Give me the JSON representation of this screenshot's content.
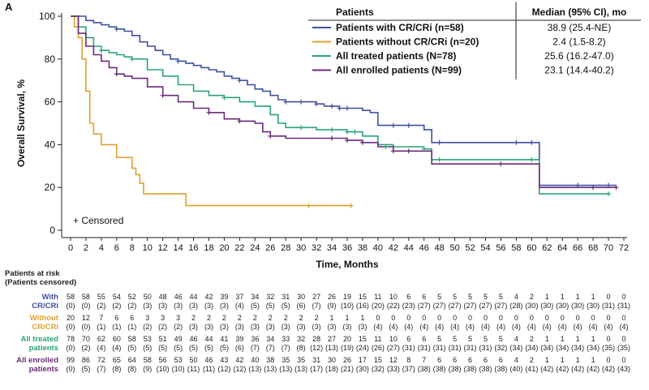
{
  "panel_label": "A",
  "censored_note": "+ Censored",
  "legend": {
    "header_patients": "Patients",
    "header_median": "Median (95% CI), mo"
  },
  "risk_table": {
    "title_line1": "Patients at risk",
    "title_line2": "(Patients censored)"
  },
  "chart_data": {
    "type": "line",
    "subtype": "kaplan-meier",
    "xlabel": "Time, Months",
    "ylabel": "Overall Survival, %",
    "xlim": [
      0,
      72
    ],
    "ylim": [
      0,
      100
    ],
    "xticks": [
      0,
      2,
      4,
      6,
      8,
      10,
      12,
      14,
      16,
      18,
      20,
      22,
      24,
      26,
      28,
      30,
      32,
      34,
      36,
      38,
      40,
      42,
      44,
      46,
      48,
      50,
      52,
      54,
      56,
      58,
      60,
      62,
      64,
      66,
      68,
      70,
      72
    ],
    "yticks": [
      0,
      20,
      40,
      60,
      80,
      100
    ],
    "grid": false,
    "legend_position": "top-right",
    "series": [
      {
        "name": "Patients with CR/CRi (n=58)",
        "median": "38.9 (25.4-NE)",
        "color": "#3f51a0",
        "x": [
          0,
          1,
          2,
          3,
          4,
          5,
          6,
          7,
          8,
          9,
          10,
          11,
          12,
          13,
          14,
          15,
          16,
          17,
          18,
          19,
          20,
          21,
          22,
          23,
          24,
          25,
          26,
          27,
          28,
          29,
          30,
          31,
          32,
          33,
          34,
          35,
          36,
          37,
          38,
          39,
          40,
          42,
          44,
          46,
          47,
          48,
          50,
          55,
          60,
          61,
          65,
          70,
          71
        ],
        "y": [
          100,
          100,
          98,
          97,
          96,
          95,
          94,
          93,
          91,
          88,
          86,
          84,
          82,
          80,
          79,
          78,
          77,
          76,
          75,
          74,
          72,
          71,
          70,
          68,
          66,
          65,
          63,
          61,
          60,
          60,
          60,
          60,
          59,
          58,
          58,
          57,
          57,
          57,
          56,
          55,
          49,
          49,
          49,
          47,
          41,
          41,
          41,
          41,
          41,
          21,
          21,
          21,
          21
        ],
        "censor_x": [
          6,
          14,
          22,
          28,
          30,
          32,
          34,
          35,
          36,
          42,
          44,
          48,
          58,
          60,
          66,
          70
        ],
        "censor_y": [
          94,
          79,
          70,
          60,
          60,
          59,
          58,
          57,
          57,
          49,
          49,
          41,
          41,
          41,
          21,
          21
        ]
      },
      {
        "name": "Patients without CR/CRi (n=20)",
        "median": "2.4 (1.5-8.2)",
        "color": "#e0a030",
        "x": [
          0,
          0.5,
          1,
          1.5,
          2,
          2.5,
          3,
          4,
          6,
          8,
          8.5,
          9,
          9.5,
          10,
          14,
          15,
          20,
          30,
          36.5
        ],
        "y": [
          100,
          95,
          90,
          80,
          65,
          50,
          45,
          40,
          34,
          29,
          26,
          22,
          17,
          17,
          17,
          11.5,
          11.5,
          11.5,
          11.5
        ],
        "censor_x": [
          31,
          36.5
        ],
        "censor_y": [
          11.5,
          11.5
        ]
      },
      {
        "name": "All treated patients (N=78)",
        "median": "25.6 (16.2-47.0)",
        "color": "#2aa37a",
        "x": [
          0,
          1,
          2,
          3,
          4,
          5,
          6,
          7,
          8,
          10,
          12,
          14,
          16,
          18,
          20,
          22,
          24,
          26,
          27,
          28,
          30,
          32,
          34,
          36,
          38,
          40,
          42,
          44,
          46,
          47,
          50,
          55,
          60,
          61,
          70
        ],
        "y": [
          100,
          95,
          90,
          86,
          84,
          83,
          82,
          81,
          80,
          75,
          72,
          68,
          65,
          63,
          62,
          60,
          58,
          54,
          50,
          48,
          48,
          47,
          47,
          46,
          44,
          40,
          39,
          39,
          38,
          33,
          33,
          33,
          33,
          17,
          17
        ],
        "censor_x": [
          4,
          8,
          20,
          30,
          34,
          36,
          37,
          41,
          46,
          48,
          60,
          70
        ],
        "censor_y": [
          84,
          80,
          62,
          48,
          47,
          46,
          46,
          39,
          38,
          33,
          33,
          17
        ]
      },
      {
        "name": "All enrolled patients (N=99)",
        "median": "23.1 (14.4-40.2)",
        "color": "#6a2a7a",
        "x": [
          0,
          1,
          2,
          3,
          4,
          5,
          6,
          7,
          8,
          10,
          12,
          14,
          16,
          18,
          20,
          22,
          24,
          25,
          26,
          28,
          30,
          32,
          34,
          36,
          38,
          40,
          42,
          44,
          46,
          47,
          50,
          55,
          60,
          61,
          71
        ],
        "y": [
          100,
          92,
          86,
          82,
          79,
          76,
          73,
          72,
          71,
          67,
          63,
          60,
          57,
          55,
          52,
          51,
          50,
          46,
          44,
          43,
          43,
          43,
          43,
          42,
          41,
          39,
          37,
          37,
          37,
          31,
          31,
          31,
          31,
          20,
          20
        ],
        "censor_x": [
          6,
          12,
          18,
          22,
          26,
          34,
          36,
          38,
          42,
          44,
          56,
          68,
          71
        ],
        "censor_y": [
          73,
          63,
          55,
          51,
          44,
          43,
          42,
          41,
          37,
          37,
          31,
          20,
          20
        ]
      }
    ],
    "risk_table": {
      "time_points": [
        0,
        2,
        4,
        6,
        8,
        10,
        12,
        14,
        16,
        18,
        20,
        22,
        24,
        26,
        28,
        30,
        32,
        34,
        36,
        38,
        40,
        42,
        44,
        46,
        48,
        50,
        52,
        54,
        56,
        58,
        60,
        62,
        64,
        66,
        68,
        70,
        72
      ],
      "rows": [
        {
          "label_line1": "With",
          "label_line2": "CR/CRi",
          "color": "#3f51a0",
          "at_risk": [
            "58",
            "58",
            "55",
            "54",
            "52",
            "50",
            "48",
            "46",
            "44",
            "42",
            "39",
            "37",
            "34",
            "32",
            "31",
            "30",
            "27",
            "26",
            "19",
            "15",
            "11",
            "10",
            "6",
            "6",
            "5",
            "5",
            "5",
            "5",
            "5",
            "4",
            "2",
            "1",
            "1",
            "1",
            "1",
            "0",
            "0"
          ],
          "censored": [
            "(0)",
            "(0)",
            "(2)",
            "(2)",
            "(2)",
            "(3)",
            "(3)",
            "(3)",
            "(3)",
            "(3)",
            "(3)",
            "(4)",
            "(5)",
            "(5)",
            "(5)",
            "(6)",
            "(7)",
            "(9)",
            "(10)",
            "(16)",
            "(20)",
            "(22)",
            "(23)",
            "(27)",
            "(27)",
            "(27)",
            "(27)",
            "(27)",
            "(27)",
            "(28)",
            "(30)",
            "(30)",
            "(30)",
            "(30)",
            "(30)",
            "(31)",
            "(31)"
          ]
        },
        {
          "label_line1": "Without",
          "label_line2": "CR/CRi",
          "color": "#e0a030",
          "at_risk": [
            "20",
            "12",
            "7",
            "6",
            "6",
            "3",
            "3",
            "3",
            "2",
            "2",
            "2",
            "2",
            "2",
            "2",
            "2",
            "2",
            "2",
            "1",
            "1",
            "1",
            "0",
            "0",
            "0",
            "0",
            "0",
            "0",
            "0",
            "0",
            "0",
            "0",
            "0",
            "0",
            "0",
            "0",
            "0",
            "0",
            "0"
          ],
          "censored": [
            "(0)",
            "(0)",
            "(1)",
            "(1)",
            "(1)",
            "(2)",
            "(2)",
            "(2)",
            "(3)",
            "(3)",
            "(3)",
            "(3)",
            "(3)",
            "(3)",
            "(3)",
            "(3)",
            "(3)",
            "(3)",
            "(3)",
            "(3)",
            "(4)",
            "(4)",
            "(4)",
            "(4)",
            "(4)",
            "(4)",
            "(4)",
            "(4)",
            "(4)",
            "(4)",
            "(4)",
            "(4)",
            "(4)",
            "(4)",
            "(4)",
            "(4)",
            "(4)"
          ]
        },
        {
          "label_line1": "All treated",
          "label_line2": "patients",
          "color": "#2aa37a",
          "at_risk": [
            "78",
            "70",
            "62",
            "60",
            "58",
            "53",
            "51",
            "49",
            "46",
            "44",
            "41",
            "39",
            "36",
            "34",
            "33",
            "32",
            "28",
            "27",
            "20",
            "15",
            "11",
            "10",
            "6",
            "6",
            "5",
            "5",
            "5",
            "5",
            "5",
            "4",
            "2",
            "1",
            "1",
            "1",
            "1",
            "0",
            "0"
          ],
          "censored": [
            "(0)",
            "(2)",
            "(4)",
            "(4)",
            "(5)",
            "(5)",
            "(5)",
            "(5)",
            "(5)",
            "(5)",
            "(5)",
            "(6)",
            "(7)",
            "(7)",
            "(7)",
            "(8)",
            "(12)",
            "(13)",
            "(19)",
            "(24)",
            "(26)",
            "(27)",
            "(31)",
            "(31)",
            "(31)",
            "(31)",
            "(31)",
            "(31)",
            "(32)",
            "(34)",
            "(34)",
            "(34)",
            "(34)",
            "(34)",
            "(34)",
            "(35)",
            "(35)"
          ]
        },
        {
          "label_line1": "All enrolled",
          "label_line2": "patients",
          "color": "#6a2a7a",
          "at_risk": [
            "99",
            "86",
            "72",
            "65",
            "64",
            "58",
            "56",
            "53",
            "50",
            "46",
            "43",
            "42",
            "40",
            "38",
            "35",
            "35",
            "31",
            "30",
            "26",
            "17",
            "15",
            "12",
            "8",
            "7",
            "6",
            "6",
            "6",
            "6",
            "6",
            "4",
            "2",
            "1",
            "1",
            "1",
            "1",
            "0",
            "0"
          ],
          "censored": [
            "(0)",
            "(5)",
            "(7)",
            "(8)",
            "(8)",
            "(9)",
            "(10)",
            "(10)",
            "(11)",
            "(11)",
            "(12)",
            "(12)",
            "(13)",
            "(13)",
            "(13)",
            "(13)",
            "(17)",
            "(18)",
            "(21)",
            "(30)",
            "(32)",
            "(33)",
            "(37)",
            "(38)",
            "(38)",
            "(38)",
            "(38)",
            "(38)",
            "(38)",
            "(40)",
            "(41)",
            "(42)",
            "(42)",
            "(42)",
            "(42)",
            "(42)",
            "(43)"
          ]
        }
      ]
    }
  }
}
